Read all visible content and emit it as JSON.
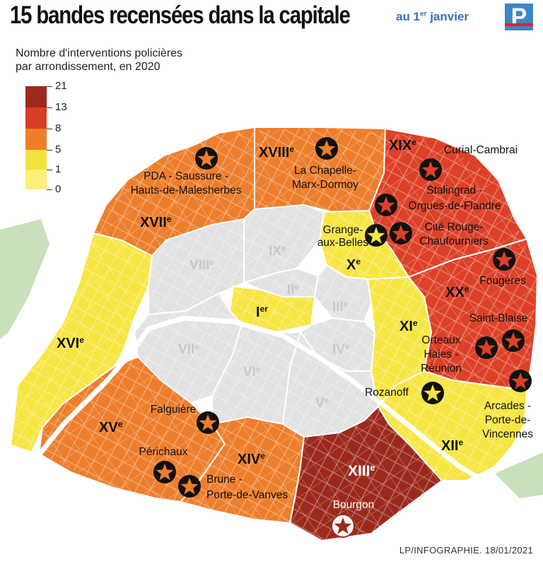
{
  "header": {
    "title": "15 bandes recensées dans la capitale",
    "subtitle_main": "au 1",
    "subtitle_sup": "er",
    "subtitle_end": " janvier",
    "logo_letter": "P"
  },
  "legend": {
    "title_line1": "Nombre d'interventions policières",
    "title_line2": "par arrondissement, en 2020",
    "ticks": [
      "21",
      "13",
      "8",
      "5",
      "1",
      "0"
    ],
    "colors": [
      "#9c2a1c",
      "#d93b26",
      "#ee7f2a",
      "#f4e23c",
      "#fbf07a"
    ]
  },
  "colors": {
    "level_0": "#e2e2e2",
    "level_1": "#f7e642",
    "level_5": "#ed7e2c",
    "level_8": "#dd4128",
    "level_21": "#9c2a1c",
    "green_space": "#c9e0bc",
    "star_black": "#111111"
  },
  "arrondissements": [
    {
      "id": "I",
      "roman": "I",
      "suffix": "er",
      "level": "1"
    },
    {
      "id": "II",
      "roman": "II",
      "suffix": "e",
      "level": "0"
    },
    {
      "id": "III",
      "roman": "III",
      "suffix": "e",
      "level": "0"
    },
    {
      "id": "IV",
      "roman": "IV",
      "suffix": "e",
      "level": "0"
    },
    {
      "id": "V",
      "roman": "V",
      "suffix": "e",
      "level": "0"
    },
    {
      "id": "VI",
      "roman": "VI",
      "suffix": "e",
      "level": "0"
    },
    {
      "id": "VII",
      "roman": "VII",
      "suffix": "e",
      "level": "0"
    },
    {
      "id": "VIII",
      "roman": "VIII",
      "suffix": "e",
      "level": "0"
    },
    {
      "id": "IX",
      "roman": "IX",
      "suffix": "e",
      "level": "0"
    },
    {
      "id": "X",
      "roman": "X",
      "suffix": "e",
      "level": "1-5"
    },
    {
      "id": "XI",
      "roman": "XI",
      "suffix": "e",
      "level": "1-5"
    },
    {
      "id": "XII",
      "roman": "XII",
      "suffix": "e",
      "level": "1-5"
    },
    {
      "id": "XIII",
      "roman": "XIII",
      "suffix": "e",
      "level": "13-21"
    },
    {
      "id": "XIV",
      "roman": "XIV",
      "suffix": "e",
      "level": "5-8"
    },
    {
      "id": "XV",
      "roman": "XV",
      "suffix": "e",
      "level": "5-8"
    },
    {
      "id": "XVI",
      "roman": "XVI",
      "suffix": "e",
      "level": "1-5"
    },
    {
      "id": "XVII",
      "roman": "XVII",
      "suffix": "e",
      "level": "5-8"
    },
    {
      "id": "XVIII",
      "roman": "XVIII",
      "suffix": "e",
      "level": "5-8"
    },
    {
      "id": "XIX",
      "roman": "XIX",
      "suffix": "e",
      "level": "8-13"
    },
    {
      "id": "XX",
      "roman": "XX",
      "suffix": "e",
      "level": "8-13"
    }
  ],
  "gangs": [
    {
      "lines": [
        "PDA - Saussure -",
        "Hauts-de-Malesherbes"
      ],
      "arr": "XVII"
    },
    {
      "lines": [
        "La Chapelle-",
        "Marx-Dormoy"
      ],
      "arr": "XVIII"
    },
    {
      "lines": [
        "Curial-Cambrai"
      ],
      "arr": "XIX"
    },
    {
      "lines": [
        "Stalingrad -",
        "Orgues-de-Flandre"
      ],
      "arr": "XIX"
    },
    {
      "lines": [
        "Cité Rouge-",
        "Chaufourniers"
      ],
      "arr": "XIX"
    },
    {
      "lines": [
        "Grange-",
        "aux-Belles"
      ],
      "arr": "X"
    },
    {
      "lines": [
        "Fougères"
      ],
      "arr": "XX"
    },
    {
      "lines": [
        "Saint-Blaise"
      ],
      "arr": "XX"
    },
    {
      "lines": [
        "Orteaux",
        "Haies -",
        "Réunion"
      ],
      "arr": "XX"
    },
    {
      "lines": [
        "Rozanoff"
      ],
      "arr": "XII"
    },
    {
      "lines": [
        "Arcades -",
        "Porte-de-",
        "Vincennes"
      ],
      "arr": "XX"
    },
    {
      "lines": [
        "Falguière"
      ],
      "arr": "XV"
    },
    {
      "lines": [
        "Périchaux"
      ],
      "arr": "XV"
    },
    {
      "lines": [
        "Brune -",
        "Porte-de-Vanves"
      ],
      "arr": "XIV"
    },
    {
      "lines": [
        "Bourgon"
      ],
      "arr": "XIII"
    }
  ],
  "credit": "LP/INFOGRAPHIE.  18/01/2021"
}
